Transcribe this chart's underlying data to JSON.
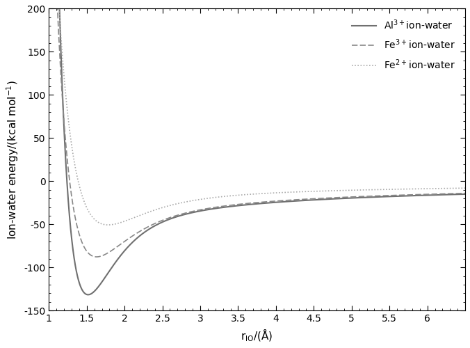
{
  "title": "",
  "xlabel": "r$_{IO}$",
  "ylabel": "Ion-water energy/(kcal mol$^{-1}$)",
  "xlim": [
    1.0,
    6.5
  ],
  "ylim": [
    -150,
    200
  ],
  "yticks": [
    -150,
    -100,
    -50,
    0,
    50,
    100,
    150,
    200
  ],
  "xticks": [
    1.0,
    1.5,
    2.0,
    2.5,
    3.0,
    3.5,
    4.0,
    4.5,
    5.0,
    5.5,
    6.0
  ],
  "xtick_labels": [
    "1",
    "1.5",
    "2",
    "2.5",
    "3",
    "3.5",
    "4",
    "4.5",
    "5",
    "5.5",
    "6"
  ],
  "background_color": "#ffffff",
  "al3_color": "#707070",
  "fe3_color": "#888888",
  "fe2_color": "#aaaaaa",
  "al3_lw": 1.5,
  "fe3_lw": 1.2,
  "fe2_lw": 1.2,
  "legend_fontsize": 10,
  "axis_fontsize": 11,
  "tick_fontsize": 10,
  "al3_label": "Al$^{3+}$ion-water",
  "fe3_label": "Fe$^{3+}$ion-water",
  "fe2_label": "Fe$^{2+}$ion-water"
}
